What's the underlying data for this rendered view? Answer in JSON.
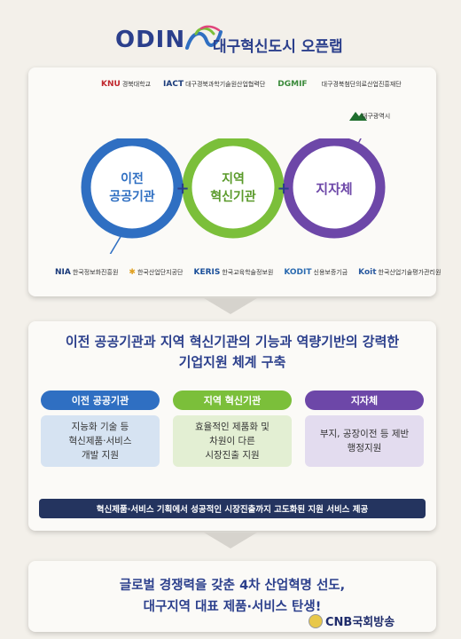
{
  "header": {
    "logo_text": "ODIN",
    "title": "대구혁신도시 오픈랩"
  },
  "top_logos": [
    {
      "mark": "KNU",
      "text": "경북대학교",
      "color": "#c0272d"
    },
    {
      "mark": "IACT",
      "text": "대구경북과학기술원산업협력단",
      "color": "#1a3a7a"
    },
    {
      "mark": "DGMIF",
      "text": "",
      "color": "#3a8a3a"
    },
    {
      "mark": "",
      "text": "대구경북첨단의료산업진흥재단",
      "color": "#1a3a7a"
    }
  ],
  "side_logo": {
    "text": "대구광역시",
    "color": "#1f6e2e"
  },
  "circles": [
    {
      "label": "이전\n공공기관",
      "color": "#2f6fc2"
    },
    {
      "label": "지역\n혁신기관",
      "color": "#7bbf3a"
    },
    {
      "label": "지자체",
      "color": "#6d47a8"
    }
  ],
  "plus_symbol": "+",
  "bottom_logos": [
    {
      "mark": "NIA",
      "text": "한국정보화진흥원",
      "color": "#1a3a7a"
    },
    {
      "mark": "✱",
      "text": "한국산업단지공단",
      "color": "#e0a020"
    },
    {
      "mark": "KERIS",
      "text": "한국교육학술정보원",
      "color": "#1a4f9a"
    },
    {
      "mark": "KODIT",
      "text": "신용보증기금",
      "color": "#2a6ab0"
    },
    {
      "mark": "Koit",
      "text": "한국산업기술평가관리원",
      "color": "#2a5aa0"
    }
  ],
  "middle": {
    "title": "이전 공공기관과 지역 혁신기관의 기능과 역량기반의 강력한\n기업지원 체계 구축",
    "columns": [
      {
        "head": "이전 공공기관",
        "body": "지능화 기술 등\n혁신제품·서비스\n개발 지원",
        "head_color": "#2f6fc2",
        "body_color": "#d6e3f2"
      },
      {
        "head": "지역 혁신기관",
        "body": "효율적인 제품화 및\n차원이 다른\n시장진출 지원",
        "head_color": "#7bbf3a",
        "body_color": "#e3efd3"
      },
      {
        "head": "지자체",
        "body": "부지, 공장이전 등 제반\n행정지원",
        "head_color": "#6d47a8",
        "body_color": "#e3dcef"
      }
    ],
    "bar": "혁신제품·서비스 기획에서 성공적인 시장진출까지 고도화된 지원 서비스 제공"
  },
  "bottom": {
    "text": "글로벌 경쟁력을 갖춘 4차 산업혁명 선도,\n대구지역 대표 제품·서비스 탄생!"
  },
  "watermark": "CNB국회방송"
}
